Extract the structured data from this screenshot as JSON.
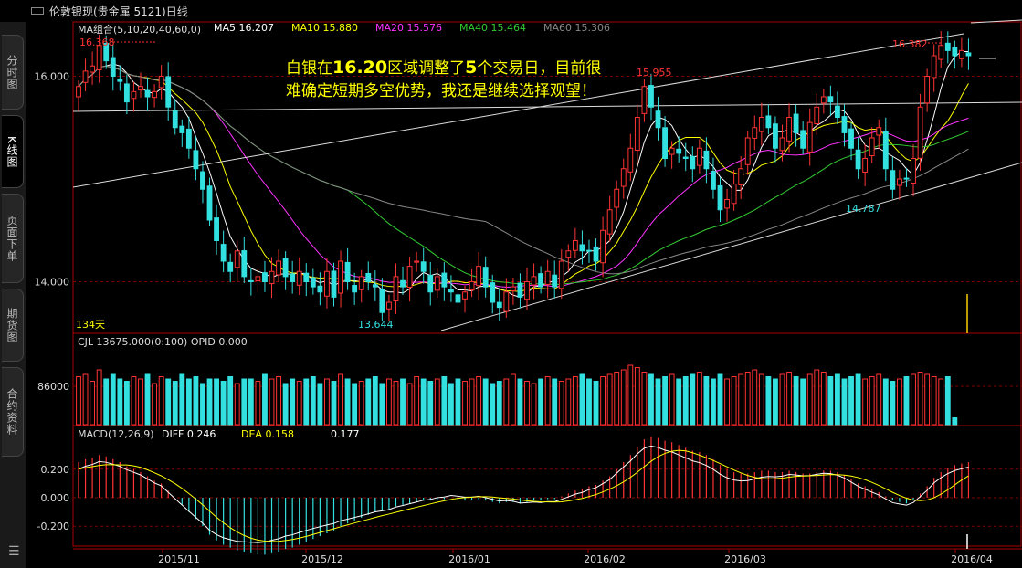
{
  "window": {
    "title": "伦敦银现(贵金属 5121)日线"
  },
  "sidebar": {
    "tabs": [
      "分时图",
      "K线图",
      "页面下单",
      "期货图",
      "合约资料"
    ],
    "active": 1
  },
  "colors": {
    "up": "#ff3333",
    "down": "#33e0e0",
    "ma5": "#ffffff",
    "ma10": "#ffff00",
    "ma20": "#ff33ff",
    "ma40": "#33cc33",
    "ma60": "#888888",
    "grid": "#800000",
    "axis": "#aa0000"
  },
  "legend": {
    "ma_group": "MA组合(5,10,20,40,60,0)",
    "items": [
      {
        "label": "MA5",
        "value": "16.207",
        "color": "#ffffff"
      },
      {
        "label": "MA10",
        "value": "15.880",
        "color": "#ffff00"
      },
      {
        "label": "MA20",
        "value": "15.576",
        "color": "#ff33ff"
      },
      {
        "label": "MA40",
        "value": "15.464",
        "color": "#33cc33"
      },
      {
        "label": "MA60",
        "value": "15.306",
        "color": "#888888"
      }
    ],
    "volume": "CJL  13675.000(0:100)   OPID  0.000",
    "macd_title": "MACD(12,26,9)",
    "macd_items": [
      {
        "label": "DIFF",
        "value": "0.246",
        "color": "#ffffff"
      },
      {
        "label": "DEA",
        "value": "0.158",
        "color": "#ffff00"
      },
      {
        "label": "",
        "value": "0.177",
        "color": "#ffffff"
      }
    ]
  },
  "annotation": {
    "pre": "白银在",
    "price": "16.20",
    "mid": "区域调整了",
    "days": "5",
    "post": "个交易日，目前很难确定短期多空优势，我还是继续选择观望！"
  },
  "days_label": "134天",
  "chart_data": {
    "type": "candlestick",
    "price_axis": {
      "ticks": [
        16.0,
        14.0
      ],
      "tick_labels": [
        "16.000",
        "14.000"
      ]
    },
    "volume_axis": {
      "tick_labels": [
        "86000"
      ]
    },
    "macd_axis": {
      "ticks": [
        0.2,
        0.0,
        -0.2
      ],
      "tick_labels": [
        "0.200",
        "0.000",
        "-0.200"
      ]
    },
    "x_labels": [
      "2015/11",
      "2015/12",
      "2016/01",
      "2016/02",
      "2016/03",
      "2016/04"
    ],
    "price_annotations": [
      {
        "text": "16.368",
        "value": 16.368,
        "color": "#ff3333"
      },
      {
        "text": "15.955",
        "value": 15.955,
        "color": "#ff3333"
      },
      {
        "text": "16.382",
        "value": 16.382,
        "color": "#ff3333"
      },
      {
        "text": "13.644",
        "value": 13.644,
        "color": "#33e0e0"
      },
      {
        "text": "14.787",
        "value": 14.787,
        "color": "#33e0e0"
      }
    ],
    "closes": [
      15.9,
      16.05,
      16.1,
      16.3,
      16.15,
      16.0,
      15.95,
      15.75,
      15.85,
      15.9,
      15.8,
      15.85,
      16.0,
      15.7,
      15.5,
      15.45,
      15.3,
      15.1,
      14.9,
      14.6,
      14.4,
      14.2,
      14.1,
      14.3,
      14.05,
      14.0,
      14.05,
      14.0,
      14.1,
      14.2,
      14.05,
      14.0,
      14.1,
      14.0,
      13.95,
      13.9,
      14.1,
      13.85,
      14.2,
      14.0,
      13.9,
      14.05,
      14.0,
      13.95,
      13.7,
      13.8,
      14.05,
      13.95,
      14.15,
      14.2,
      14.1,
      13.9,
      14.05,
      13.95,
      13.9,
      13.8,
      13.9,
      14.0,
      14.15,
      13.95,
      13.8,
      13.75,
      13.9,
      13.95,
      13.85,
      14.0,
      14.05,
      13.95,
      14.1,
      13.95,
      14.2,
      14.3,
      14.4,
      14.3,
      14.3,
      14.2,
      14.5,
      14.7,
      14.9,
      15.1,
      15.3,
      15.6,
      15.9,
      15.7,
      15.5,
      15.2,
      15.3,
      15.25,
      15.2,
      15.1,
      15.3,
      15.1,
      14.9,
      14.7,
      14.8,
      14.95,
      15.1,
      15.4,
      15.5,
      15.6,
      15.5,
      15.3,
      15.4,
      15.6,
      15.45,
      15.3,
      15.55,
      15.7,
      15.8,
      15.75,
      15.6,
      15.45,
      15.3,
      15.1,
      15.2,
      15.4,
      15.5,
      15.1,
      14.9,
      15.0,
      15.0,
      15.2,
      15.7,
      16.0,
      16.2,
      16.3,
      16.25,
      16.2,
      16.25,
      16.2
    ],
    "volumes": [
      1.05,
      1.1,
      0.95,
      1.2,
      1.0,
      1.1,
      1.0,
      0.95,
      1.05,
      1.0,
      1.1,
      0.9,
      1.05,
      1.0,
      0.95,
      1.1,
      1.0,
      1.05,
      0.9,
      1.0,
      1.0,
      0.95,
      1.05,
      0.9,
      1.0,
      1.0,
      0.95,
      1.1,
      1.0,
      1.05,
      0.9,
      1.0,
      0.95,
      1.0,
      1.05,
      0.9,
      1.0,
      0.95,
      1.1,
      1.0,
      0.9,
      0.95,
      1.0,
      1.05,
      0.9,
      1.0,
      0.95,
      1.0,
      0.9,
      1.05,
      1.0,
      0.95,
      1.0,
      1.05,
      0.9,
      1.0,
      0.95,
      1.0,
      1.05,
      1.0,
      0.9,
      0.95,
      1.0,
      1.1,
      1.0,
      0.95,
      0.9,
      1.0,
      1.05,
      1.0,
      0.95,
      1.0,
      1.05,
      1.1,
      1.0,
      0.95,
      1.05,
      1.1,
      1.15,
      1.2,
      1.3,
      1.25,
      1.15,
      1.1,
      1.0,
      1.05,
      1.1,
      1.0,
      1.05,
      1.1,
      1.15,
      1.05,
      1.0,
      1.1,
      1.0,
      1.05,
      1.1,
      1.15,
      1.2,
      1.1,
      1.05,
      1.0,
      1.1,
      1.15,
      1.05,
      1.0,
      1.1,
      1.2,
      1.15,
      1.05,
      1.1,
      1.0,
      1.05,
      1.1,
      1.0,
      1.05,
      1.1,
      1.0,
      0.95,
      1.0,
      1.05,
      1.1,
      1.15,
      1.1,
      1.05,
      1.0,
      1.05,
      0.15
    ],
    "macd": [
      0.25,
      0.27,
      0.28,
      0.3,
      0.29,
      0.27,
      0.25,
      0.22,
      0.2,
      0.18,
      0.15,
      0.12,
      0.1,
      0.05,
      0.0,
      -0.05,
      -0.1,
      -0.15,
      -0.2,
      -0.26,
      -0.3,
      -0.33,
      -0.35,
      -0.37,
      -0.38,
      -0.39,
      -0.4,
      -0.4,
      -0.39,
      -0.38,
      -0.36,
      -0.35,
      -0.33,
      -0.31,
      -0.29,
      -0.27,
      -0.25,
      -0.23,
      -0.2,
      -0.18,
      -0.16,
      -0.14,
      -0.12,
      -0.1,
      -0.09,
      -0.08,
      -0.06,
      -0.05,
      -0.04,
      -0.03,
      -0.02,
      -0.02,
      -0.01,
      -0.01,
      0.0,
      -0.01,
      -0.02,
      -0.02,
      -0.01,
      -0.02,
      -0.03,
      -0.04,
      -0.03,
      -0.03,
      -0.04,
      -0.03,
      -0.02,
      -0.02,
      -0.01,
      -0.01,
      0.01,
      0.03,
      0.05,
      0.06,
      0.08,
      0.09,
      0.12,
      0.15,
      0.2,
      0.25,
      0.3,
      0.36,
      0.41,
      0.43,
      0.42,
      0.4,
      0.39,
      0.37,
      0.35,
      0.33,
      0.32,
      0.3,
      0.27,
      0.23,
      0.2,
      0.18,
      0.17,
      0.17,
      0.18,
      0.19,
      0.19,
      0.18,
      0.18,
      0.19,
      0.18,
      0.17,
      0.17,
      0.18,
      0.19,
      0.19,
      0.18,
      0.16,
      0.13,
      0.1,
      0.08,
      0.06,
      0.04,
      0.01,
      -0.02,
      -0.03,
      -0.04,
      -0.02,
      0.03,
      0.08,
      0.14,
      0.18,
      0.21,
      0.23,
      0.24,
      0.25
    ]
  }
}
